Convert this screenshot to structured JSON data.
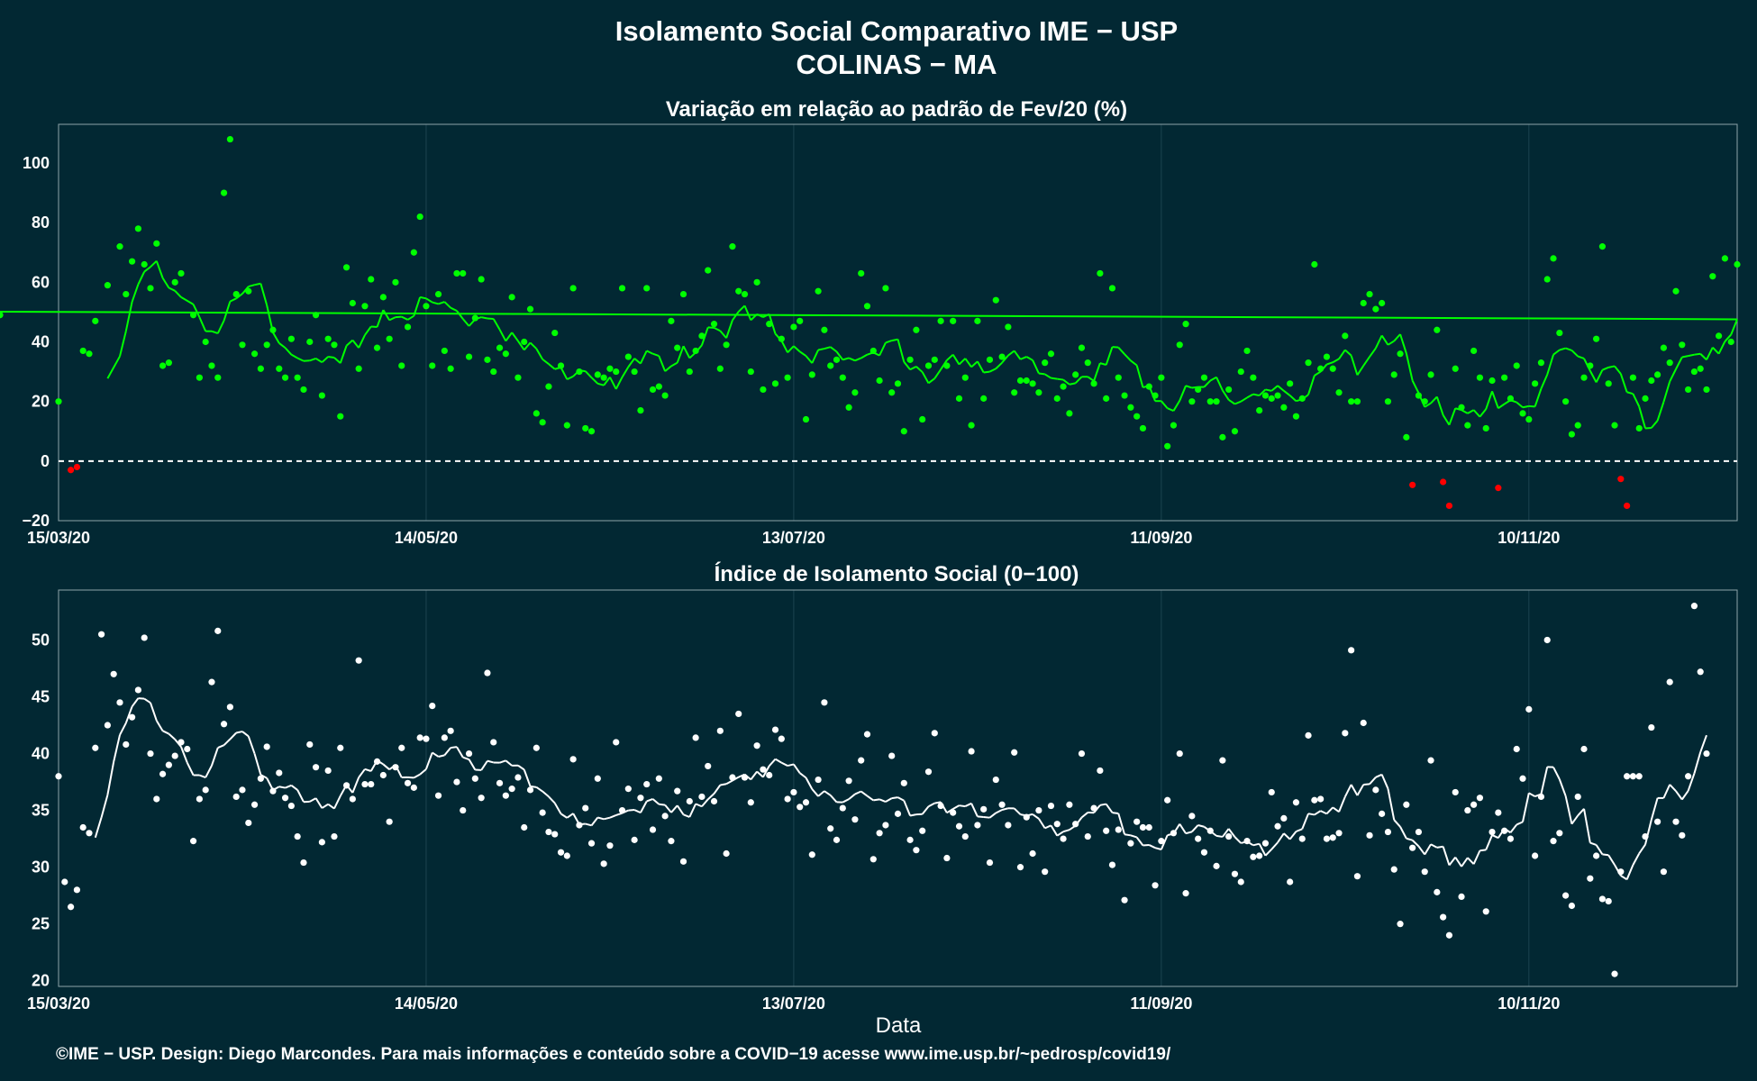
{
  "title_line1": "Isolamento Social Comparativo IME − USP",
  "title_line2": "COLINAS − MA",
  "footer": "©IME − USP. Design: Diego Marcondes. Para mais informações e conteúdo sobre a COVID−19 acesse www.ime.usp.br/~pedrosp/covid19/",
  "xlabel": "Data",
  "colors": {
    "background": "#022833",
    "positive": "#00ff00",
    "negative": "#ff0000",
    "index_points": "#ffffff",
    "gridline": "#1c4350",
    "frame": "#8fa3a9"
  },
  "chart_data": [
    {
      "type": "scatter",
      "title": "Variação em relação ao padrão de Fev/20 (%)",
      "x_start": "2020-03-15",
      "x_ticks": [
        "15/03/20",
        "14/05/20",
        "13/07/20",
        "11/09/20",
        "10/11/20"
      ],
      "yticks": [
        -20,
        0,
        20,
        40,
        60,
        80,
        100
      ],
      "ylim": [
        -20,
        113
      ],
      "reference_line": 0,
      "grid": true,
      "points_day_offsets": [
        0,
        2,
        3,
        4,
        5,
        6,
        8,
        10,
        11,
        12,
        13,
        14,
        15,
        16,
        17,
        18,
        19,
        20,
        22,
        23,
        24,
        25,
        26,
        27,
        28,
        29,
        30,
        31,
        32,
        33,
        34,
        35,
        36,
        37,
        38,
        39,
        40,
        41,
        42,
        43,
        44,
        45,
        46,
        47,
        48,
        49,
        50,
        51,
        52,
        53,
        54,
        55,
        56,
        57,
        58,
        59,
        60,
        61,
        62,
        63,
        64,
        65,
        66,
        67,
        68,
        69,
        70,
        71,
        72,
        73,
        74,
        75,
        76,
        77,
        78,
        79,
        80,
        81,
        82,
        83,
        84,
        85,
        86,
        87,
        88,
        89,
        90,
        91,
        92,
        93,
        94,
        95,
        96,
        97,
        98,
        99,
        100,
        101,
        102,
        103,
        104,
        105,
        106,
        107,
        108,
        109,
        110,
        111,
        112,
        113,
        114,
        115,
        116,
        117,
        118,
        119,
        120,
        121,
        122,
        123,
        124,
        125,
        126,
        127,
        128,
        129,
        130,
        131,
        132,
        133,
        134,
        135,
        136,
        137,
        138,
        139,
        140,
        141,
        142,
        143,
        144,
        145,
        146,
        147,
        148,
        149,
        150,
        151,
        152,
        153,
        154,
        155,
        156,
        157,
        158,
        159,
        160,
        161,
        162,
        163,
        164,
        165,
        166,
        167,
        168,
        169,
        170,
        171,
        172,
        173,
        174,
        175,
        176,
        177,
        178,
        179,
        180,
        181,
        182,
        183,
        184,
        185,
        186,
        187,
        188,
        189,
        190,
        191,
        192,
        193,
        194,
        195,
        196,
        197,
        198,
        199,
        200,
        201,
        202,
        203,
        204,
        205,
        206,
        207,
        208,
        209,
        210,
        211,
        212,
        213,
        214,
        215,
        216,
        217,
        218,
        219,
        220,
        221,
        222,
        223,
        224,
        225,
        226,
        227,
        228,
        229,
        230,
        231,
        232,
        233,
        234,
        235,
        236,
        237,
        238,
        239,
        240,
        241,
        242,
        243,
        244,
        245,
        246,
        247,
        248,
        249,
        250,
        251,
        252,
        253,
        254,
        255,
        256,
        257,
        258,
        259,
        260,
        261,
        262,
        263,
        264,
        265,
        266,
        267,
        268,
        269,
        270,
        271,
        272,
        273,
        274
      ],
      "points": [
        20,
        -3,
        -2,
        37,
        36,
        47,
        59,
        72,
        56,
        67,
        78,
        66,
        58,
        73,
        32,
        33,
        60,
        63,
        49,
        28,
        40,
        32,
        28,
        90,
        108,
        56,
        39,
        57,
        36,
        31,
        39,
        44,
        31,
        28,
        41,
        28,
        24,
        40,
        49,
        22,
        41,
        39,
        15,
        65,
        53,
        31,
        52,
        61,
        38,
        55,
        41,
        60,
        32,
        45,
        70,
        82,
        52,
        32,
        56,
        37,
        31,
        63,
        63,
        35,
        48,
        61,
        34,
        30,
        38,
        36,
        55,
        28,
        40,
        51,
        16,
        13,
        25,
        43,
        32,
        12,
        58,
        30,
        11,
        10,
        29,
        28,
        31,
        30,
        58,
        35,
        30,
        17,
        58,
        24,
        25,
        22,
        47,
        38,
        56,
        30,
        37,
        42,
        64,
        46,
        31,
        39,
        72,
        57,
        56,
        30,
        60,
        24,
        46,
        26,
        41,
        28,
        45,
        47,
        14,
        29,
        57,
        44,
        32,
        34,
        28,
        18,
        23,
        63,
        52,
        37,
        27,
        58,
        23,
        26,
        10,
        34,
        44,
        14,
        32,
        34,
        47,
        32,
        47,
        21,
        28,
        12,
        47,
        21,
        34,
        54,
        35,
        45,
        23,
        27,
        27,
        26,
        23,
        33,
        36,
        21,
        25,
        16,
        29,
        38,
        33,
        26,
        63,
        21,
        58,
        28,
        22,
        18,
        15,
        11,
        25,
        22,
        28,
        5,
        12,
        39,
        46,
        20,
        24,
        28,
        20,
        20,
        8,
        24,
        10,
        30,
        37,
        28,
        17,
        22,
        21,
        22,
        18,
        26,
        15,
        21,
        33,
        66,
        31,
        35,
        31,
        23,
        42,
        20,
        20,
        53,
        56,
        51,
        53,
        20,
        29,
        36,
        8,
        -8,
        22,
        20,
        29,
        44,
        -7,
        -15,
        31,
        18,
        12,
        37,
        28,
        11,
        27,
        -9,
        28,
        21,
        32,
        16,
        14,
        26,
        33,
        61,
        68,
        43,
        20,
        9,
        12,
        28,
        32,
        41,
        72,
        26,
        12,
        -6,
        -15,
        28,
        11,
        21,
        27,
        29,
        38,
        33,
        57,
        39,
        24,
        30,
        31,
        24,
        62,
        42,
        68,
        40,
        66,
        49
      ]
    },
    {
      "type": "scatter",
      "title": "Índice de Isolamento Social (0−100)",
      "x_start": "2020-03-15",
      "x_ticks": [
        "15/03/20",
        "14/05/20",
        "13/07/20",
        "11/09/20",
        "10/11/20"
      ],
      "yticks": [
        20,
        25,
        30,
        35,
        40,
        45,
        50
      ],
      "ylim": [
        19.5,
        54.4
      ],
      "grid": true,
      "points": [
        38.0,
        28.7,
        26.5,
        28.0,
        33.5,
        33.0,
        40.5,
        50.5,
        42.5,
        47.0,
        44.5,
        40.8,
        43.2,
        45.6,
        50.2,
        40.0,
        36.0,
        38.2,
        39.0,
        39.8,
        41.0,
        40.4,
        32.3,
        36.0,
        36.8,
        46.3,
        50.8,
        42.6,
        44.1,
        36.2,
        36.8,
        33.9,
        35.5,
        37.8,
        40.6,
        36.7,
        38.3,
        36.1,
        35.4,
        32.7,
        30.4,
        40.8,
        38.8,
        32.2,
        38.5,
        32.7,
        40.5,
        37.2,
        36.0,
        48.2,
        37.3,
        37.3,
        39.3,
        38.1,
        34.0,
        38.8,
        40.5,
        37.4,
        37.0,
        41.4,
        41.3,
        44.2,
        36.3,
        41.4,
        42.0,
        37.5,
        35.0,
        40.0,
        37.8,
        36.1,
        47.1,
        41.0,
        37.4,
        36.3,
        36.9,
        37.9,
        33.5,
        36.8,
        40.5,
        34.8,
        33.1,
        32.9,
        31.3,
        31.0,
        39.5,
        33.7,
        35.2,
        32.1,
        37.8,
        30.3,
        31.9,
        41.0,
        35.0,
        36.9,
        32.4,
        36.1,
        37.3,
        33.3,
        37.8,
        34.5,
        32.3,
        36.7,
        30.5,
        35.8,
        41.4,
        36.2,
        38.9,
        35.8,
        42.0,
        31.2,
        37.9,
        43.5,
        37.9,
        35.7,
        40.7,
        38.6,
        38.1,
        42.1,
        41.3,
        36.0,
        36.6,
        35.3,
        35.7,
        31.1,
        37.7,
        44.5,
        33.4,
        32.4,
        35.2,
        37.6,
        34.2,
        39.4,
        41.7,
        30.7,
        33.0,
        33.7,
        39.8,
        34.7,
        37.4,
        32.4,
        31.5,
        33.2,
        38.4,
        41.8,
        35.4,
        30.8,
        34.8,
        33.6,
        32.7,
        40.2,
        33.7,
        35.1,
        30.4,
        37.7,
        35.5,
        33.7,
        40.1,
        30.0,
        34.4,
        31.2,
        35.0,
        29.6,
        35.4,
        33.8,
        32.5,
        35.5,
        33.8,
        40.0,
        32.7,
        35.2,
        38.5,
        33.2,
        30.2,
        33.3,
        27.1,
        32.1,
        34.0,
        33.5,
        33.5,
        28.4,
        32.3,
        35.9,
        33.0,
        40.0,
        27.7,
        34.5,
        32.5,
        31.3,
        33.2,
        30.1,
        39.4,
        32.7,
        29.4,
        28.7,
        32.3,
        30.9,
        31.0,
        32.1,
        36.6,
        33.6,
        34.3,
        28.7,
        35.7,
        32.5,
        41.6,
        35.9,
        36.0,
        32.5,
        32.6,
        33.0,
        41.8,
        49.1,
        29.2,
        42.7,
        32.8,
        36.8,
        34.7,
        33.1,
        29.8,
        25.0,
        35.5,
        31.7,
        33.1,
        29.6,
        39.4,
        27.8,
        25.6,
        24.0,
        36.6,
        27.4,
        35.0,
        35.5,
        36.1,
        26.1,
        33.1,
        34.8,
        33.2,
        32.5,
        40.4,
        37.8,
        43.9,
        31.0,
        36.2,
        50.0,
        32.3,
        33.0,
        27.5,
        26.6,
        36.2,
        40.4,
        29.0,
        31.0,
        27.2,
        27.0,
        20.6,
        29.6,
        38.0,
        38.0,
        38.0,
        32.7,
        42.3,
        34.0,
        29.6,
        46.3,
        34.0,
        32.8,
        38.0,
        53.0,
        47.2,
        40.0
      ]
    }
  ]
}
